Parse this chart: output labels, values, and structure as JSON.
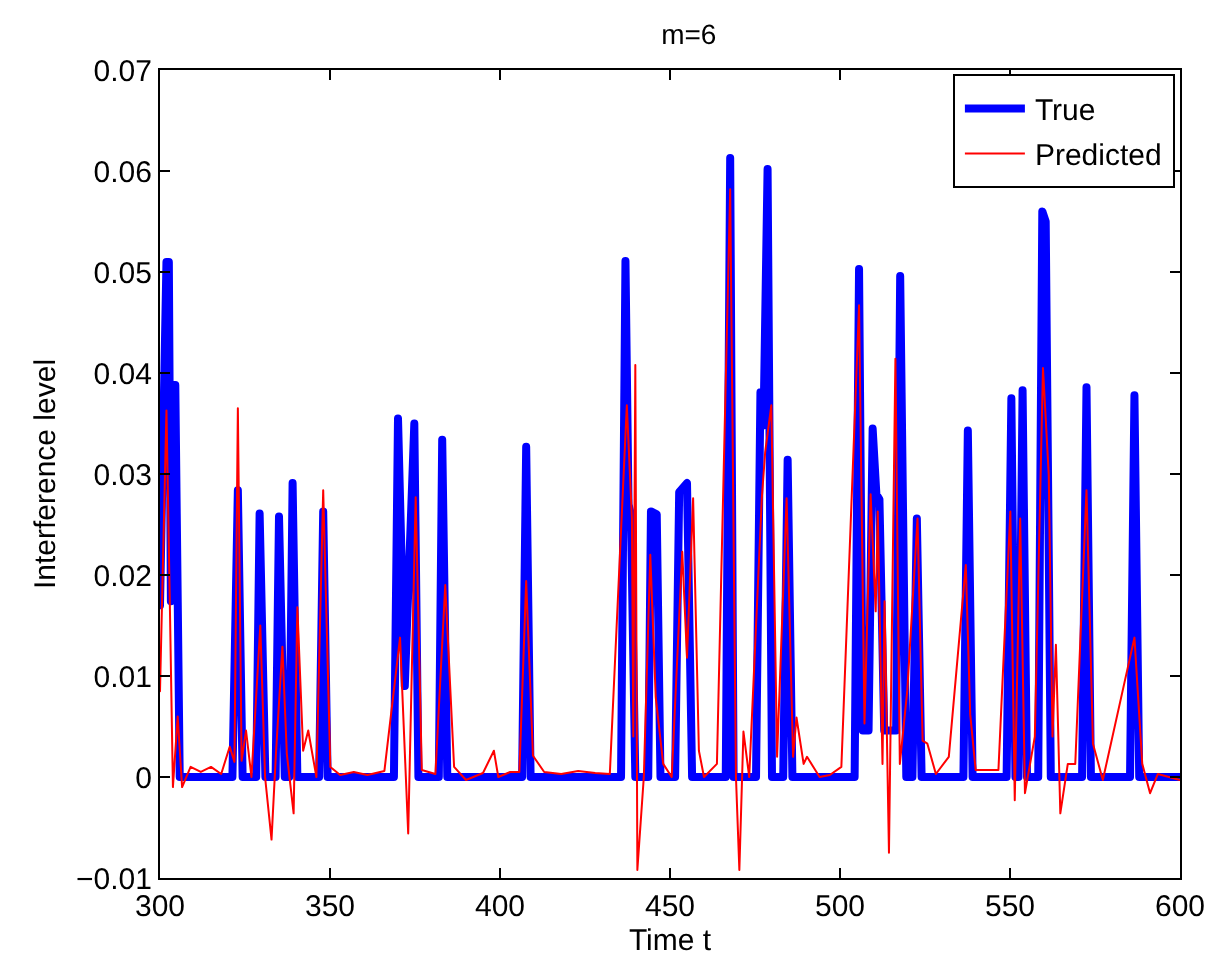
{
  "chart_data": {
    "type": "line",
    "title": "m=6",
    "xlabel": "Time t",
    "ylabel": "Interference level",
    "xlim": [
      300,
      600
    ],
    "xticks": [
      300,
      350,
      400,
      450,
      500,
      550,
      600
    ],
    "ylim": [
      -0.01,
      0.07
    ],
    "yticks": [
      -0.01,
      0,
      0.01,
      0.02,
      0.03,
      0.04,
      0.05,
      0.06,
      0.07
    ],
    "legend": "top right",
    "marker": "none",
    "series": [
      {
        "name": "True",
        "color": "#0000ff",
        "x": [
          300,
          301.9,
          302.6,
          303.2,
          303.8,
          304.5,
          305.8,
          321.3,
          322.9,
          324.3,
          328.3,
          329.3,
          331,
          334,
          335,
          336.7,
          338,
          339,
          340.4,
          346.8,
          348,
          349.3,
          368.8,
          370,
          372,
          374.8,
          376,
          382,
          383,
          384.5,
          406.5,
          407.7,
          409,
          435.6,
          436.9,
          437.8,
          438.5,
          439.8,
          443.6,
          444.4,
          446.1,
          447.2,
          451.5,
          452.7,
          455,
          456.5,
          466.4,
          467.7,
          468.7,
          475.3,
          476.6,
          477.5,
          478.7,
          480,
          483.3,
          484.6,
          486,
          504.3,
          505.6,
          506.7,
          508.4,
          509.6,
          510.7,
          511.6,
          513,
          516.5,
          517.7,
          519.5,
          521.3,
          522.6,
          524,
          536.3,
          537.6,
          539,
          549,
          550.4,
          551.6,
          552.5,
          553.7,
          555,
          558.3,
          559.5,
          560.5,
          562,
          571.2,
          572.5,
          573.8,
          585.3,
          586.6,
          588,
          600
        ],
        "values": [
          0.017,
          0.051,
          0.051,
          0.0174,
          0.0388,
          0.0388,
          0,
          0,
          0.0284,
          0,
          0,
          0.0261,
          0,
          0,
          0.0258,
          0,
          0,
          0.0291,
          0,
          0,
          0.0263,
          0,
          0,
          0.0355,
          0.009,
          0.035,
          0,
          0,
          0.0334,
          0,
          0,
          0.0327,
          0,
          0,
          0.0511,
          0.027,
          0.026,
          0,
          0,
          0.0263,
          0.026,
          0,
          0,
          0.0282,
          0.0291,
          0,
          0,
          0.0613,
          0,
          0,
          0.0381,
          0.0348,
          0.0602,
          0,
          0,
          0.0314,
          0,
          0,
          0.0503,
          0.0046,
          0.0046,
          0.0345,
          0.028,
          0.0275,
          0.0046,
          0.0046,
          0.0496,
          0,
          0,
          0.0256,
          0,
          0,
          0.0343,
          0,
          0,
          0.0375,
          0,
          0,
          0.0383,
          0,
          0,
          0.056,
          0.055,
          0,
          0,
          0.0386,
          0,
          0,
          0.0378,
          0,
          0
        ]
      },
      {
        "name": "Predicted",
        "color": "#ff0000",
        "x": [
          300,
          301.9,
          302.9,
          303.8,
          305.2,
          306.5,
          309,
          312,
          315,
          318,
          320.5,
          321.9,
          322.9,
          324,
          325.3,
          326.9,
          329.5,
          330.9,
          332.8,
          334.1,
          336,
          337.3,
          339.3,
          340.4,
          342.1,
          343.6,
          346,
          348,
          350.1,
          353,
          357,
          361,
          366,
          370.6,
          373,
          375.2,
          377,
          381,
          383.9,
          386.5,
          390,
          395,
          398.2,
          399.5,
          403,
          405.7,
          407.7,
          409.7,
          413,
          418,
          423,
          428,
          432.3,
          437.3,
          438.8,
          439.2,
          439.8,
          440.4,
          442.3,
          444.2,
          445.8,
          448,
          450.5,
          453.6,
          455,
          456.8,
          458.5,
          460,
          463.8,
          467.7,
          469.4,
          470.4,
          471.6,
          473.3,
          477,
          478,
          479.8,
          481.5,
          484.3,
          486.2,
          487.2,
          489.3,
          490.3,
          494,
          497,
          500.4,
          505.6,
          507.2,
          509,
          510.5,
          511.1,
          512.5,
          513.1,
          514.4,
          516.3,
          517.6,
          519.8,
          522.8,
          524.3,
          525.7,
          528.2,
          532,
          537,
          538.3,
          539.9,
          546.6,
          550.1,
          551.4,
          553,
          554.4,
          557.3,
          559.7,
          561.4,
          562.5,
          563.5,
          564.8,
          567,
          569.2,
          572.5,
          574.4,
          577.3,
          586.6,
          588.9,
          591.2,
          593.5,
          600
        ],
        "values": [
          0.0085,
          0.0363,
          0.017,
          -0.001,
          0.006,
          -0.001,
          0.001,
          0.0005,
          0.001,
          0.0003,
          0.003,
          0.0015,
          0.0365,
          0.0016,
          0.0046,
          0,
          0.015,
          0,
          -0.0062,
          0.0023,
          0.0129,
          0.0023,
          -0.0036,
          0.0168,
          0.0026,
          0.0046,
          0,
          0.0284,
          0.001,
          0.0002,
          0.0005,
          0.0002,
          0.0006,
          0.0138,
          -0.0056,
          0.0277,
          0.0007,
          0.0003,
          0.019,
          0.001,
          -0.0003,
          0.0004,
          0.0026,
          0,
          0.0005,
          0.0005,
          0.0194,
          0.0021,
          0.0005,
          0.0003,
          0.0006,
          0.0004,
          0.0003,
          0.0368,
          0.0256,
          0.004,
          0.0408,
          -0.0092,
          0,
          0.022,
          0.0079,
          0.0013,
          0,
          0.0223,
          0.0118,
          0.0276,
          0.0026,
          0,
          0.0013,
          0.0582,
          0,
          -0.0092,
          0.0045,
          0,
          0.0276,
          0.0322,
          0.0368,
          0.002,
          0.0276,
          0.002,
          0.0059,
          0.0013,
          0.002,
          0,
          0.0002,
          0.001,
          0.0467,
          0.0053,
          0.028,
          0.0164,
          0.0263,
          0.0013,
          0.0174,
          -0.0075,
          0.0414,
          0.0013,
          0.0086,
          0.0256,
          0.0036,
          0.0033,
          0.0003,
          0.002,
          0.021,
          0.0062,
          0.0007,
          0.0007,
          0.0263,
          -0.0023,
          0.0256,
          -0.0016,
          0.004,
          0.0405,
          0.0299,
          0.004,
          0.0131,
          -0.0036,
          0.0013,
          0.0013,
          0.0284,
          0.0033,
          -0.0003,
          0.0138,
          0.0013,
          -0.0016,
          0.0003,
          -0.0003
        ]
      }
    ]
  }
}
